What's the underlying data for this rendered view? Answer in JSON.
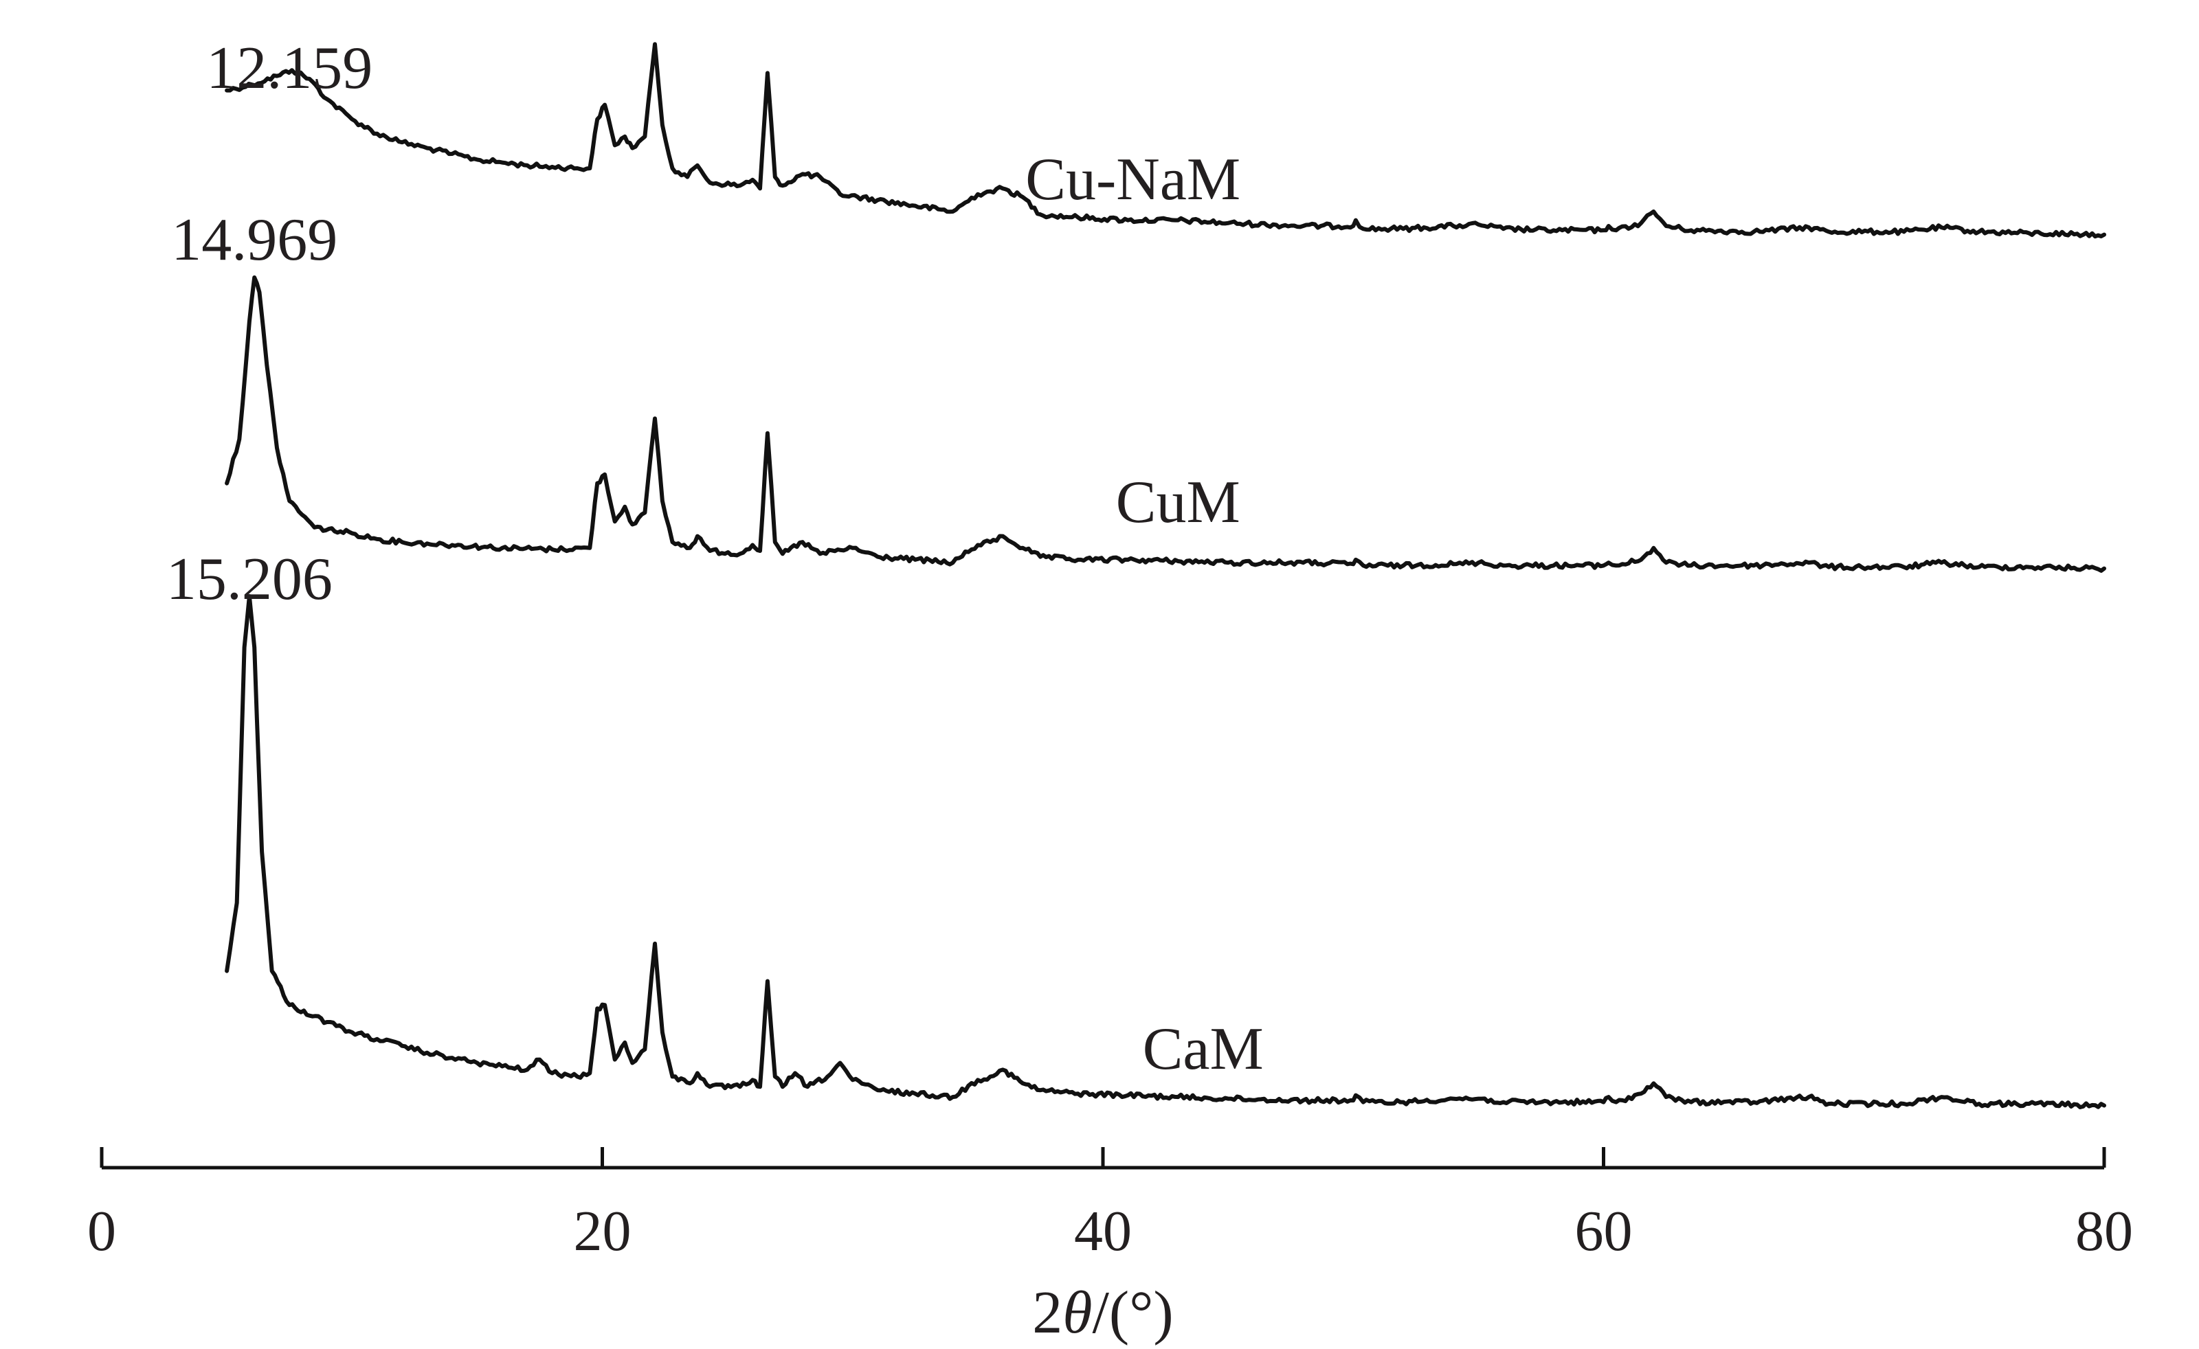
{
  "chart_data": {
    "type": "line",
    "title": "",
    "xlabel_pre": "2",
    "xlabel_theta": "θ",
    "xlabel_post": "/(°)",
    "xlim": [
      0,
      80
    ],
    "xticks": [
      0,
      20,
      40,
      60,
      80
    ],
    "y_axis_shown": false,
    "grid": false,
    "line_color": "#111111",
    "series": [
      {
        "name": "Cu-NaM",
        "peak_label": "12.159",
        "peak_label_x": 7.5,
        "label_x": 41.2,
        "points": [
          [
            5,
            0.52
          ],
          [
            6,
            0.54
          ],
          [
            7,
            0.57
          ],
          [
            7.6,
            0.59
          ],
          [
            8.3,
            0.56
          ],
          [
            9,
            0.49
          ],
          [
            10,
            0.42
          ],
          [
            11,
            0.37
          ],
          [
            12,
            0.34
          ],
          [
            13,
            0.32
          ],
          [
            14,
            0.3
          ],
          [
            15,
            0.28
          ],
          [
            16,
            0.27
          ],
          [
            17,
            0.26
          ],
          [
            18,
            0.255
          ],
          [
            19,
            0.25
          ],
          [
            19.5,
            0.25
          ],
          [
            19.8,
            0.42
          ],
          [
            20.1,
            0.47
          ],
          [
            20.5,
            0.33
          ],
          [
            20.9,
            0.36
          ],
          [
            21.2,
            0.32
          ],
          [
            21.7,
            0.36
          ],
          [
            22.1,
            0.68
          ],
          [
            22.4,
            0.4
          ],
          [
            22.8,
            0.25
          ],
          [
            23.4,
            0.22
          ],
          [
            23.8,
            0.26
          ],
          [
            24.3,
            0.2
          ],
          [
            25.5,
            0.19
          ],
          [
            26.0,
            0.21
          ],
          [
            26.3,
            0.18
          ],
          [
            26.6,
            0.58
          ],
          [
            26.9,
            0.22
          ],
          [
            27.2,
            0.19
          ],
          [
            28.0,
            0.23
          ],
          [
            28.7,
            0.22
          ],
          [
            29.5,
            0.16
          ],
          [
            31.0,
            0.14
          ],
          [
            32.5,
            0.12
          ],
          [
            34.0,
            0.1
          ],
          [
            35.0,
            0.16
          ],
          [
            35.5,
            0.17
          ],
          [
            36.0,
            0.18
          ],
          [
            36.8,
            0.15
          ],
          [
            37.5,
            0.09
          ],
          [
            39,
            0.08
          ],
          [
            41,
            0.07
          ],
          [
            43,
            0.07
          ],
          [
            45,
            0.06
          ],
          [
            48,
            0.05
          ],
          [
            50,
            0.05
          ],
          [
            50.1,
            0.07
          ],
          [
            50.4,
            0.04
          ],
          [
            52,
            0.04
          ],
          [
            54,
            0.05
          ],
          [
            55,
            0.055
          ],
          [
            56,
            0.04
          ],
          [
            58,
            0.035
          ],
          [
            60,
            0.035
          ],
          [
            60.2,
            0.05
          ],
          [
            60.5,
            0.035
          ],
          [
            61.5,
            0.06
          ],
          [
            62.0,
            0.1
          ],
          [
            62.5,
            0.05
          ],
          [
            63.5,
            0.035
          ],
          [
            66,
            0.03
          ],
          [
            68.2,
            0.045
          ],
          [
            69,
            0.03
          ],
          [
            72,
            0.03
          ],
          [
            73.5,
            0.045
          ],
          [
            75,
            0.03
          ],
          [
            77,
            0.025
          ],
          [
            80,
            0.02
          ]
        ]
      },
      {
        "name": "CuM",
        "peak_label": "14.969",
        "peak_label_x": 6.1,
        "label_x": 43.0,
        "points": [
          [
            5,
            0.3
          ],
          [
            5.5,
            0.45
          ],
          [
            5.9,
            0.85
          ],
          [
            6.1,
            1.0
          ],
          [
            6.3,
            0.95
          ],
          [
            6.6,
            0.7
          ],
          [
            7.0,
            0.42
          ],
          [
            7.5,
            0.24
          ],
          [
            8.5,
            0.15
          ],
          [
            10,
            0.13
          ],
          [
            11,
            0.11
          ],
          [
            12,
            0.1
          ],
          [
            13,
            0.095
          ],
          [
            14,
            0.09
          ],
          [
            16,
            0.08
          ],
          [
            18,
            0.075
          ],
          [
            19.5,
            0.08
          ],
          [
            19.8,
            0.3
          ],
          [
            20.1,
            0.33
          ],
          [
            20.5,
            0.17
          ],
          [
            20.9,
            0.22
          ],
          [
            21.2,
            0.16
          ],
          [
            21.7,
            0.2
          ],
          [
            22.1,
            0.52
          ],
          [
            22.4,
            0.24
          ],
          [
            22.8,
            0.1
          ],
          [
            23.5,
            0.08
          ],
          [
            23.8,
            0.12
          ],
          [
            24.3,
            0.07
          ],
          [
            25.5,
            0.06
          ],
          [
            26.0,
            0.09
          ],
          [
            26.3,
            0.07
          ],
          [
            26.6,
            0.47
          ],
          [
            26.9,
            0.1
          ],
          [
            27.2,
            0.06
          ],
          [
            28.0,
            0.1
          ],
          [
            28.7,
            0.06
          ],
          [
            30.0,
            0.08
          ],
          [
            31,
            0.05
          ],
          [
            32.5,
            0.04
          ],
          [
            34.0,
            0.03
          ],
          [
            35.0,
            0.09
          ],
          [
            35.5,
            0.1
          ],
          [
            36.0,
            0.12
          ],
          [
            36.8,
            0.08
          ],
          [
            37.5,
            0.05
          ],
          [
            39,
            0.04
          ],
          [
            41,
            0.04
          ],
          [
            43,
            0.035
          ],
          [
            45,
            0.03
          ],
          [
            48,
            0.03
          ],
          [
            50,
            0.025
          ],
          [
            50.1,
            0.04
          ],
          [
            50.4,
            0.02
          ],
          [
            52,
            0.02
          ],
          [
            54,
            0.025
          ],
          [
            55,
            0.03
          ],
          [
            56,
            0.02
          ],
          [
            58,
            0.02
          ],
          [
            60,
            0.02
          ],
          [
            60.2,
            0.03
          ],
          [
            60.5,
            0.02
          ],
          [
            61.5,
            0.04
          ],
          [
            62.0,
            0.08
          ],
          [
            62.5,
            0.03
          ],
          [
            63.5,
            0.02
          ],
          [
            66,
            0.02
          ],
          [
            68.2,
            0.03
          ],
          [
            69,
            0.015
          ],
          [
            72,
            0.015
          ],
          [
            73.5,
            0.03
          ],
          [
            75,
            0.015
          ],
          [
            77,
            0.015
          ],
          [
            80,
            0.01
          ]
        ]
      },
      {
        "name": "CaM",
        "peak_label": "15.206",
        "peak_label_x": 5.9,
        "label_x": 44.0,
        "points": [
          [
            5,
            0.4
          ],
          [
            5.4,
            0.6
          ],
          [
            5.7,
            1.35
          ],
          [
            5.9,
            1.5
          ],
          [
            6.1,
            1.35
          ],
          [
            6.4,
            0.75
          ],
          [
            6.8,
            0.4
          ],
          [
            7.5,
            0.3
          ],
          [
            9,
            0.25
          ],
          [
            10,
            0.22
          ],
          [
            11,
            0.2
          ],
          [
            12,
            0.18
          ],
          [
            13,
            0.16
          ],
          [
            14,
            0.145
          ],
          [
            15,
            0.13
          ],
          [
            16,
            0.12
          ],
          [
            17,
            0.11
          ],
          [
            17.5,
            0.14
          ],
          [
            18.0,
            0.1
          ],
          [
            19.0,
            0.09
          ],
          [
            19.5,
            0.1
          ],
          [
            19.8,
            0.29
          ],
          [
            20.1,
            0.3
          ],
          [
            20.5,
            0.14
          ],
          [
            20.9,
            0.19
          ],
          [
            21.2,
            0.13
          ],
          [
            21.7,
            0.17
          ],
          [
            22.1,
            0.48
          ],
          [
            22.4,
            0.22
          ],
          [
            22.8,
            0.09
          ],
          [
            23.5,
            0.07
          ],
          [
            23.8,
            0.1
          ],
          [
            24.3,
            0.06
          ],
          [
            25.5,
            0.06
          ],
          [
            26.0,
            0.08
          ],
          [
            26.3,
            0.06
          ],
          [
            26.6,
            0.37
          ],
          [
            26.9,
            0.09
          ],
          [
            27.2,
            0.06
          ],
          [
            27.7,
            0.1
          ],
          [
            28.2,
            0.06
          ],
          [
            29.0,
            0.09
          ],
          [
            29.5,
            0.13
          ],
          [
            30.0,
            0.08
          ],
          [
            31,
            0.05
          ],
          [
            32.5,
            0.04
          ],
          [
            34.0,
            0.03
          ],
          [
            35.0,
            0.08
          ],
          [
            35.5,
            0.09
          ],
          [
            36.0,
            0.11
          ],
          [
            36.8,
            0.07
          ],
          [
            37.5,
            0.05
          ],
          [
            39,
            0.04
          ],
          [
            41,
            0.035
          ],
          [
            43,
            0.03
          ],
          [
            45,
            0.025
          ],
          [
            48,
            0.02
          ],
          [
            50,
            0.02
          ],
          [
            50.1,
            0.035
          ],
          [
            50.4,
            0.015
          ],
          [
            52,
            0.015
          ],
          [
            54,
            0.025
          ],
          [
            55,
            0.025
          ],
          [
            56,
            0.015
          ],
          [
            58,
            0.015
          ],
          [
            60,
            0.015
          ],
          [
            60.2,
            0.03
          ],
          [
            60.5,
            0.015
          ],
          [
            61.5,
            0.04
          ],
          [
            62.0,
            0.07
          ],
          [
            62.5,
            0.03
          ],
          [
            63.5,
            0.015
          ],
          [
            66,
            0.015
          ],
          [
            68.2,
            0.03
          ],
          [
            69,
            0.01
          ],
          [
            72,
            0.01
          ],
          [
            73.5,
            0.03
          ],
          [
            75,
            0.01
          ],
          [
            77,
            0.01
          ],
          [
            80,
            0.005
          ]
        ]
      }
    ]
  }
}
